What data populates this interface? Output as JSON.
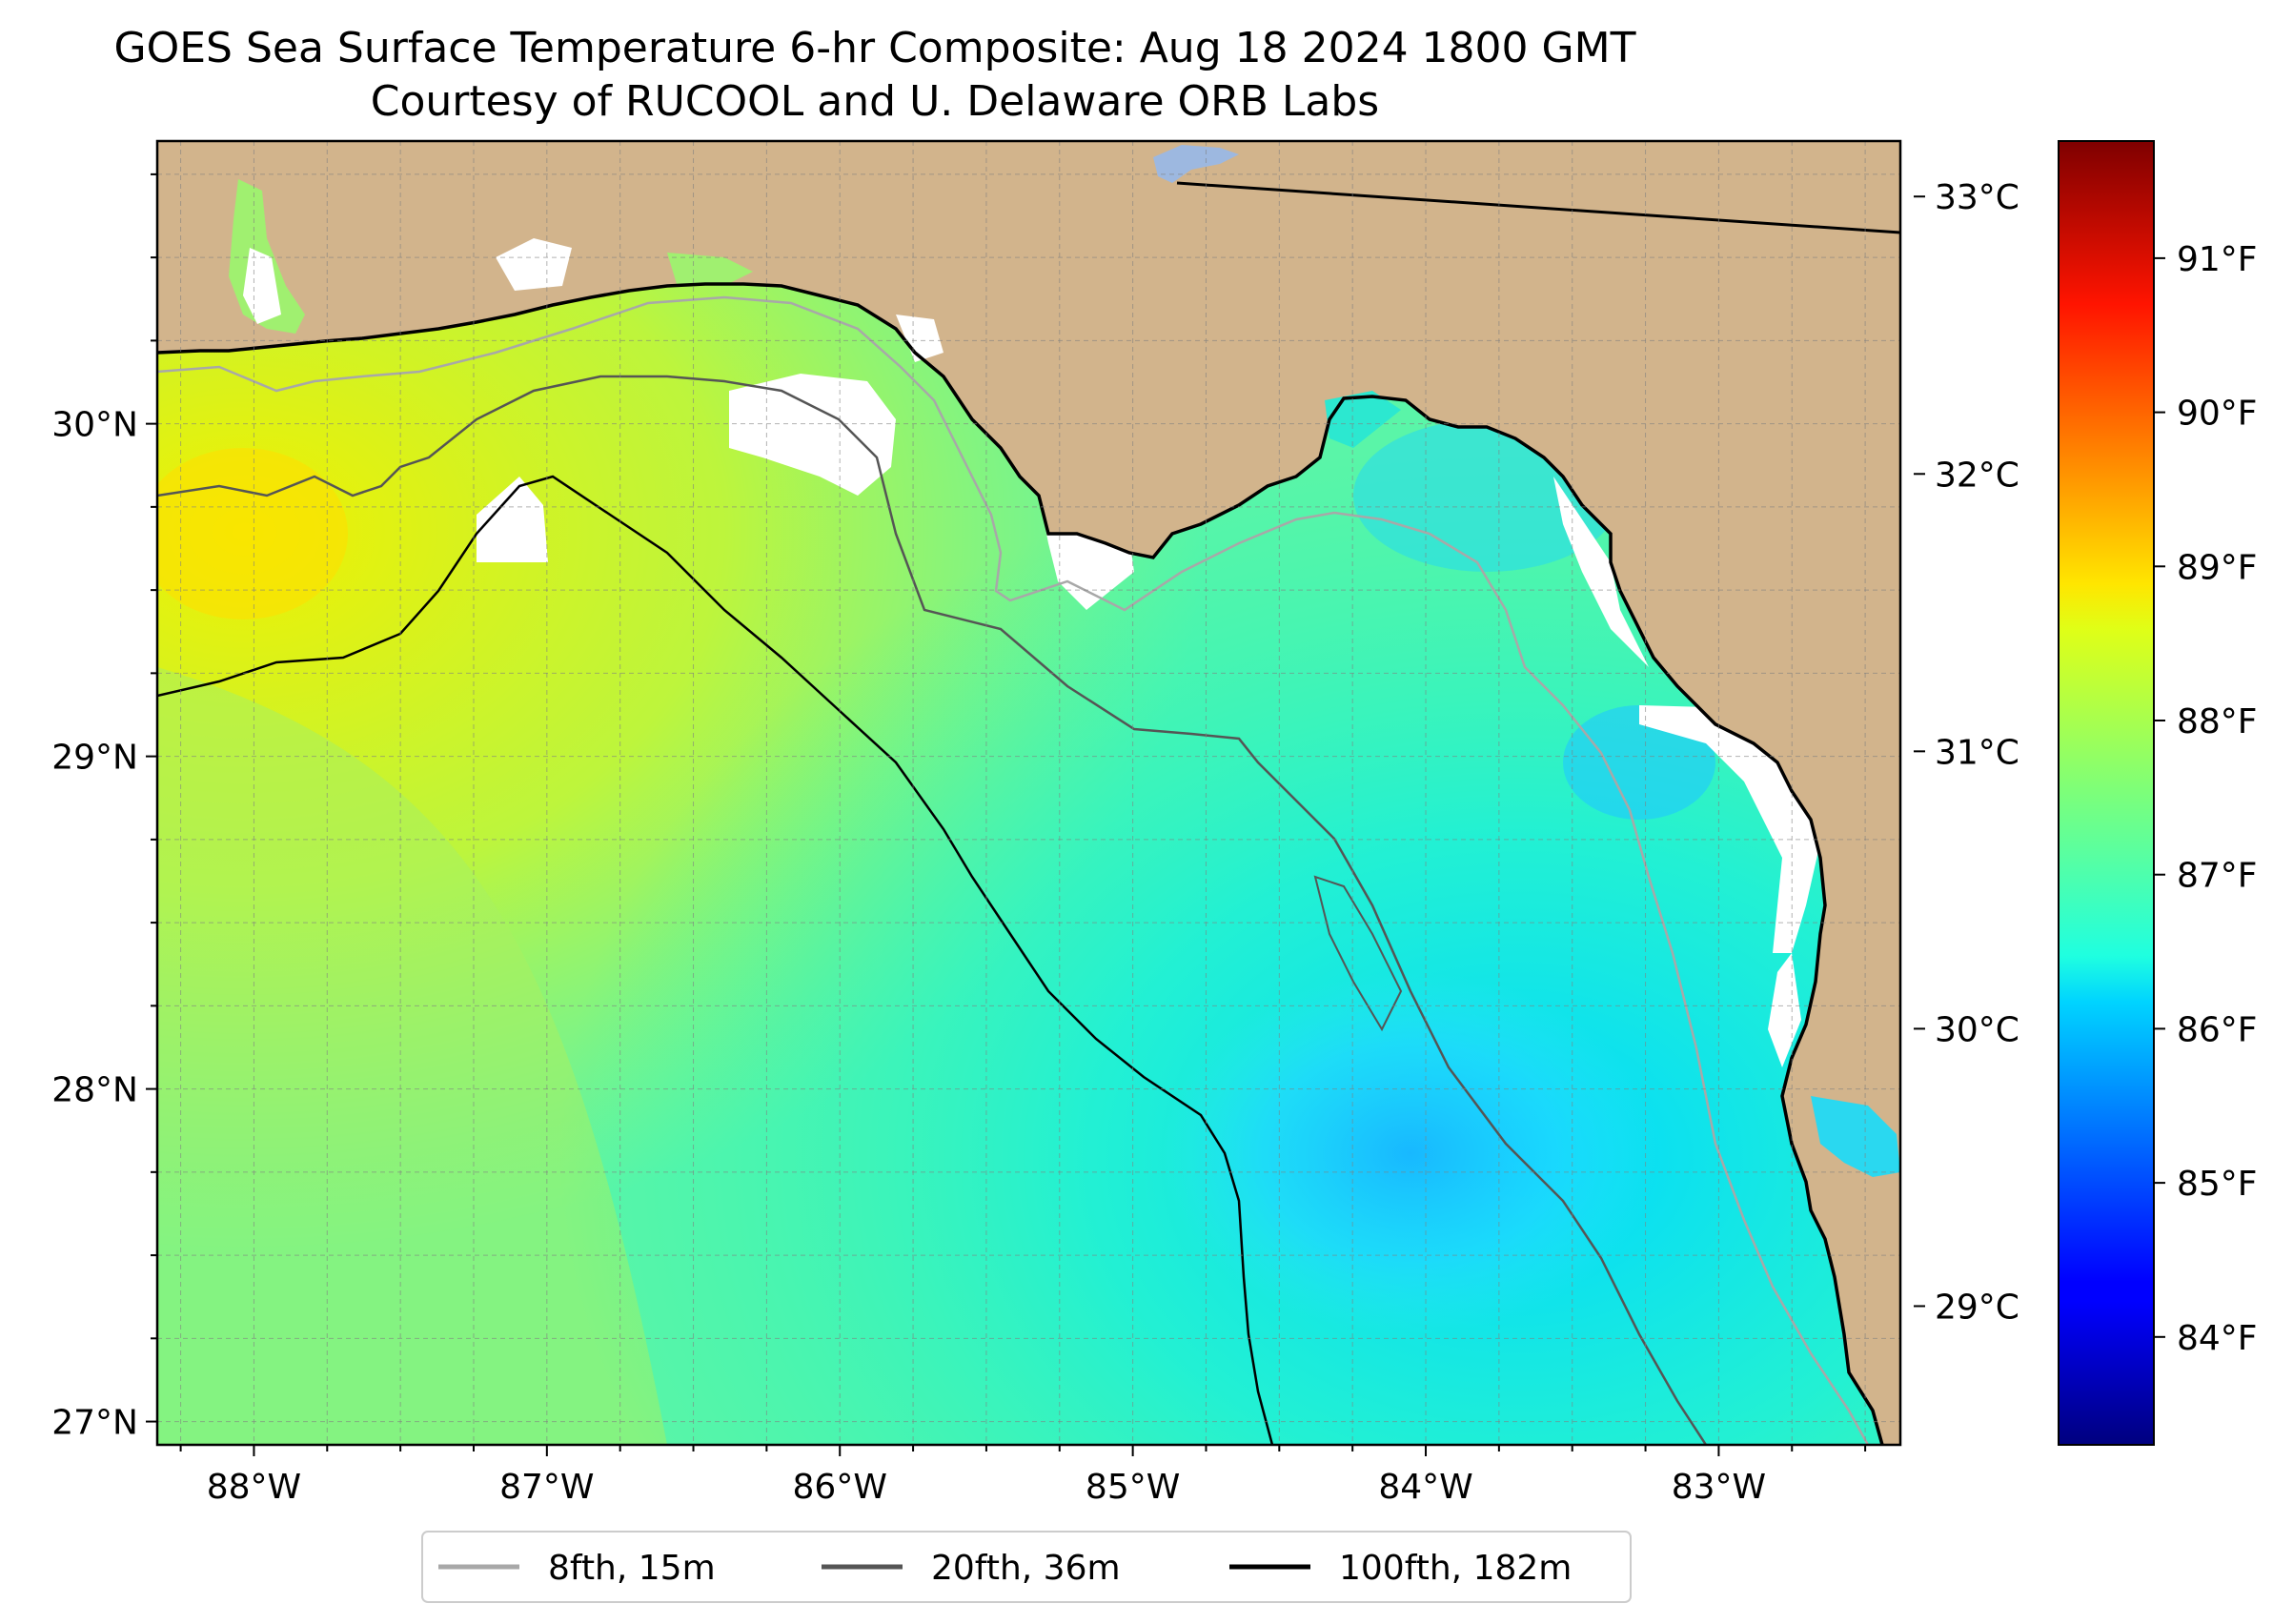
{
  "title": {
    "line1": "GOES Sea Surface Temperature 6-hr Composite: Aug 18 2024 1800 GMT",
    "line2": "Courtesy of RUCOOL and U. Delaware ORB Labs"
  },
  "map": {
    "lon_range": [
      -88.33,
      -82.38
    ],
    "lat_range": [
      26.93,
      30.85
    ],
    "lon_ticks": [
      {
        "value": -88,
        "label": "88°W"
      },
      {
        "value": -87,
        "label": "87°W"
      },
      {
        "value": -86,
        "label": "86°W"
      },
      {
        "value": -85,
        "label": "85°W"
      },
      {
        "value": -84,
        "label": "84°W"
      },
      {
        "value": -83,
        "label": "83°W"
      }
    ],
    "lat_ticks": [
      {
        "value": 27,
        "label": "27°N"
      },
      {
        "value": 28,
        "label": "28°N"
      },
      {
        "value": 29,
        "label": "29°N"
      },
      {
        "value": 30,
        "label": "30°N"
      }
    ],
    "gridlines": true,
    "colors": {
      "land": "#d2b48c",
      "no_data": "#ffffff",
      "lake": "#9db8e0",
      "isobath_8": "#a8a8a8",
      "isobath_20": "#555555",
      "isobath_100": "#000000",
      "coast": "#000000"
    }
  },
  "legend": {
    "items": [
      {
        "label": "8fth, 15m",
        "color": "#a8a8a8"
      },
      {
        "label": "20fth, 36m",
        "color": "#555555"
      },
      {
        "label": "100fth, 182m",
        "color": "#000000"
      }
    ],
    "placement": "bottom-center"
  },
  "colorbar": {
    "colormap": "jet",
    "range_c": [
      28.5,
      33.2
    ],
    "celsius_ticks": [
      {
        "value": 29,
        "label": "29°C"
      },
      {
        "value": 30,
        "label": "30°C"
      },
      {
        "value": 31,
        "label": "31°C"
      },
      {
        "value": 32,
        "label": "32°C"
      },
      {
        "value": 33,
        "label": "33°C"
      }
    ],
    "fahrenheit_ticks": [
      {
        "value": 84,
        "label": "84°F"
      },
      {
        "value": 85,
        "label": "85°F"
      },
      {
        "value": 86,
        "label": "86°F"
      },
      {
        "value": 87,
        "label": "87°F"
      },
      {
        "value": 88,
        "label": "88°F"
      },
      {
        "value": 89,
        "label": "89°F"
      },
      {
        "value": 90,
        "label": "90°F"
      },
      {
        "value": 91,
        "label": "91°F"
      }
    ]
  }
}
